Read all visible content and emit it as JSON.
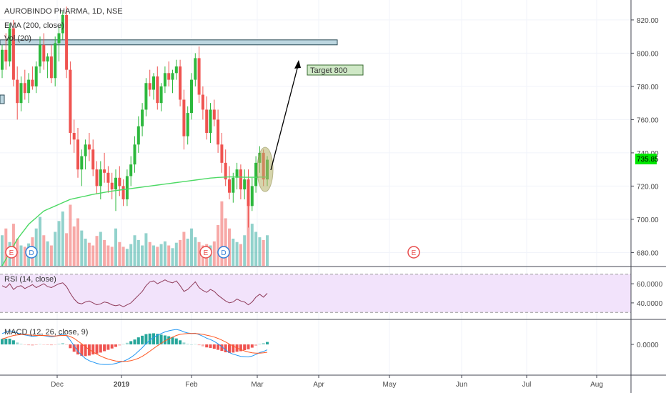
{
  "header": {
    "symbol": "AUROBINDO PHARMA, 1D, NSE",
    "ema_label": "EMA (200, close)",
    "vol_label": "Vol (20)",
    "rsi_label": "RSI (14, close)",
    "macd_label": "MACD (12, 26, close, 9)"
  },
  "annotations": {
    "target_label": "Target 800",
    "last_price": "735.85"
  },
  "colors": {
    "up": "#26a69a",
    "up_candle": "#2db83d",
    "down": "#ef5350",
    "ema": "#4cd964",
    "rsi_line": "#8e3a59",
    "rsi_band": "#f2e3fb",
    "macd_line": "#2196f3",
    "signal_line": "#ff5722",
    "price_tag": "#00e600"
  },
  "chart_data": {
    "type": "candlestick",
    "price_axis": {
      "ticks": [
        "820.00",
        "800.00",
        "780.00",
        "760.00",
        "740.00",
        "720.00",
        "700.00",
        "680.00"
      ],
      "ylim": [
        672,
        832
      ]
    },
    "rsi_axis": {
      "ticks": [
        "60.0000",
        "40.0000"
      ],
      "band": [
        30,
        70
      ]
    },
    "macd_axis": {
      "ticks": [
        "0.0000"
      ]
    },
    "time_axis": [
      "Dec",
      "2019",
      "Feb",
      "Mar",
      "Apr",
      "May",
      "Jun",
      "Jul",
      "Aug"
    ],
    "resistance_zone": [
      805,
      808
    ],
    "target": 800,
    "event_markers": [
      "E",
      "D",
      "E",
      "D",
      "E"
    ],
    "candles": [
      [
        790,
        805,
        785,
        802
      ],
      [
        802,
        812,
        790,
        795
      ],
      [
        795,
        818,
        792,
        815
      ],
      [
        815,
        820,
        780,
        784
      ],
      [
        784,
        792,
        760,
        770
      ],
      [
        770,
        786,
        765,
        782
      ],
      [
        782,
        790,
        772,
        776
      ],
      [
        776,
        788,
        770,
        784
      ],
      [
        784,
        792,
        778,
        780
      ],
      [
        780,
        795,
        776,
        792
      ],
      [
        792,
        810,
        788,
        805
      ],
      [
        805,
        812,
        790,
        795
      ],
      [
        795,
        800,
        785,
        798
      ],
      [
        798,
        805,
        782,
        785
      ],
      [
        785,
        810,
        780,
        806
      ],
      [
        806,
        816,
        795,
        812
      ],
      [
        812,
        825,
        808,
        823
      ],
      [
        823,
        828,
        785,
        790
      ],
      [
        790,
        795,
        745,
        752
      ],
      [
        752,
        760,
        740,
        748
      ],
      [
        748,
        755,
        725,
        730
      ],
      [
        730,
        742,
        720,
        738
      ],
      [
        738,
        748,
        730,
        745
      ],
      [
        745,
        752,
        735,
        742
      ],
      [
        742,
        748,
        726,
        730
      ],
      [
        730,
        735,
        715,
        720
      ],
      [
        720,
        735,
        712,
        730
      ],
      [
        730,
        740,
        722,
        728
      ],
      [
        728,
        732,
        716,
        722
      ],
      [
        722,
        728,
        712,
        718
      ],
      [
        718,
        730,
        705,
        725
      ],
      [
        725,
        732,
        714,
        720
      ],
      [
        720,
        724,
        708,
        712
      ],
      [
        712,
        730,
        708,
        726
      ],
      [
        726,
        738,
        720,
        733
      ],
      [
        733,
        750,
        728,
        745
      ],
      [
        745,
        762,
        740,
        756
      ],
      [
        756,
        770,
        750,
        766
      ],
      [
        766,
        785,
        762,
        782
      ],
      [
        782,
        790,
        774,
        778
      ],
      [
        778,
        788,
        772,
        786
      ],
      [
        786,
        792,
        766,
        770
      ],
      [
        770,
        782,
        765,
        780
      ],
      [
        780,
        792,
        776,
        788
      ],
      [
        788,
        795,
        780,
        784
      ],
      [
        784,
        790,
        776,
        788
      ],
      [
        788,
        796,
        784,
        792
      ],
      [
        792,
        796,
        768,
        772
      ],
      [
        772,
        778,
        742,
        750
      ],
      [
        750,
        768,
        745,
        764
      ],
      [
        764,
        788,
        760,
        784
      ],
      [
        784,
        800,
        780,
        797
      ],
      [
        797,
        804,
        770,
        775
      ],
      [
        775,
        780,
        760,
        766
      ],
      [
        766,
        774,
        748,
        752
      ],
      [
        752,
        770,
        746,
        766
      ],
      [
        766,
        772,
        756,
        760
      ],
      [
        760,
        766,
        740,
        745
      ],
      [
        745,
        752,
        728,
        734
      ],
      [
        734,
        742,
        720,
        724
      ],
      [
        724,
        732,
        712,
        716
      ],
      [
        716,
        728,
        710,
        725
      ],
      [
        725,
        734,
        718,
        730
      ],
      [
        730,
        733,
        712,
        718
      ],
      [
        718,
        730,
        712,
        724
      ],
      [
        724,
        730,
        695,
        708
      ],
      [
        708,
        725,
        705,
        720
      ],
      [
        720,
        738,
        716,
        734
      ],
      [
        734,
        744,
        728,
        740
      ],
      [
        740,
        742,
        720,
        724
      ],
      [
        724,
        738,
        720,
        735.85
      ]
    ],
    "ema200": [
      672,
      676,
      680,
      684,
      688,
      691,
      694,
      697,
      699,
      701,
      703,
      705,
      706,
      707,
      708,
      709,
      710,
      711,
      712,
      712.5,
      713,
      713.5,
      714,
      714.5,
      715,
      715.4,
      715.8,
      716.2,
      716.6,
      717,
      717.3,
      717.6,
      717.9,
      718.2,
      718.5,
      718.8,
      719.1,
      719.4,
      719.7,
      720,
      720.3,
      720.6,
      720.9,
      721.2,
      721.5,
      721.8,
      722.1,
      722.4,
      722.7,
      723,
      723.3,
      723.6,
      723.9,
      724.2,
      724.5,
      724.8,
      725,
      725.2,
      725.3,
      725.4,
      725.5,
      725.5,
      725.4,
      725.4,
      725.3,
      725.3,
      725.3,
      725.3,
      725.4,
      725.4,
      725.4
    ],
    "volume": [
      0.45,
      0.55,
      0.35,
      0.62,
      0.4,
      0.3,
      0.28,
      0.33,
      0.42,
      0.55,
      0.72,
      0.45,
      0.36,
      0.3,
      0.5,
      0.66,
      0.8,
      0.48,
      0.9,
      0.58,
      0.7,
      0.52,
      0.4,
      0.34,
      0.3,
      0.44,
      0.5,
      0.38,
      0.3,
      0.28,
      0.55,
      0.35,
      0.28,
      0.25,
      0.32,
      0.45,
      0.38,
      0.3,
      0.48,
      0.35,
      0.3,
      0.28,
      0.32,
      0.36,
      0.3,
      0.26,
      0.34,
      0.38,
      0.5,
      0.4,
      0.55,
      0.42,
      0.35,
      0.3,
      0.32,
      0.3,
      0.36,
      0.6,
      0.95,
      0.7,
      0.55,
      0.4,
      0.35,
      0.32,
      0.45,
      0.9,
      0.62,
      0.5,
      0.42,
      0.38,
      0.45
    ],
    "rsi": [
      58,
      56,
      60,
      54,
      57,
      58,
      55,
      57,
      59,
      56,
      58,
      60,
      57,
      56,
      58,
      60,
      61,
      57,
      50,
      44,
      40,
      39,
      41,
      42,
      40,
      38,
      39,
      41,
      40,
      38,
      37,
      38,
      36,
      38,
      40,
      44,
      48,
      52,
      58,
      62,
      63,
      60,
      62,
      64,
      62,
      61,
      63,
      58,
      52,
      54,
      58,
      62,
      56,
      53,
      51,
      54,
      52,
      48,
      45,
      42,
      40,
      41,
      44,
      42,
      41,
      38,
      41,
      46,
      49,
      46,
      50
    ],
    "macd": [
      4,
      4.5,
      5,
      4.8,
      4.2,
      3.8,
      3.5,
      3.2,
      3,
      3.1,
      3.4,
      3.2,
      3,
      2.8,
      3,
      3.4,
      3.8,
      3.2,
      1.5,
      -0.5,
      -2.5,
      -4,
      -5.2,
      -6,
      -6.5,
      -7,
      -7.3,
      -7.4,
      -7.4,
      -7.3,
      -7,
      -6.6,
      -6.2,
      -5.6,
      -4.8,
      -3.8,
      -2.5,
      -1.2,
      0.3,
      1.5,
      2.6,
      3.4,
      4,
      4.6,
      5,
      5.3,
      5.5,
      5.2,
      4.6,
      4.2,
      4,
      4.1,
      3.6,
      3,
      2.3,
      1.8,
      1.1,
      0.2,
      -0.8,
      -2,
      -3,
      -3.6,
      -4,
      -4.4,
      -4.5,
      -4.6,
      -4.3,
      -3.7,
      -3,
      -2.6,
      -2
    ],
    "signal": [
      2,
      2.4,
      2.9,
      3.3,
      3.5,
      3.6,
      3.6,
      3.5,
      3.4,
      3.3,
      3.3,
      3.3,
      3.2,
      3.1,
      3.1,
      3.2,
      3.3,
      3.3,
      2.9,
      2.2,
      1.2,
      0.2,
      -0.9,
      -1.9,
      -2.8,
      -3.6,
      -4.3,
      -4.9,
      -5.4,
      -5.8,
      -6.1,
      -6.2,
      -6.3,
      -6.2,
      -6,
      -5.6,
      -5.1,
      -4.4,
      -3.5,
      -2.5,
      -1.5,
      -0.5,
      0.4,
      1.3,
      2,
      2.7,
      3.3,
      3.7,
      3.9,
      4,
      4,
      4,
      3.9,
      3.7,
      3.4,
      3.1,
      2.7,
      2.2,
      1.6,
      0.9,
      0.1,
      -0.6,
      -1.3,
      -1.9,
      -2.4,
      -2.8,
      -3.1,
      -3.2,
      -3.2,
      -3.1,
      -2.9
    ]
  }
}
